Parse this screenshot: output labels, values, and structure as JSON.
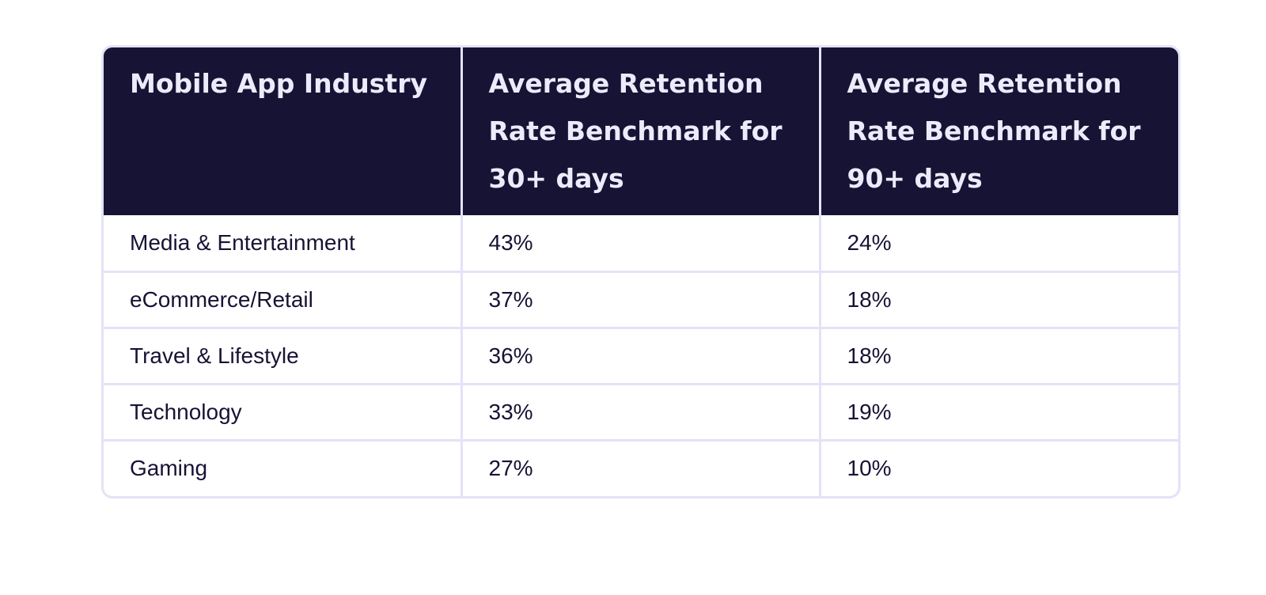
{
  "table": {
    "headers": [
      "Mobile App Industry",
      "Average Retention Rate Benchmark for 30+ days",
      "Average Retention Rate Benchmark for 90+ days"
    ],
    "rows": [
      [
        "Media & Entertainment",
        "43%",
        "24%"
      ],
      [
        "eCommerce/Retail",
        "37%",
        "18%"
      ],
      [
        "Travel & Lifestyle",
        "36%",
        "18%"
      ],
      [
        "Technology",
        "33%",
        "19%"
      ],
      [
        "Gaming",
        "27%",
        "10%"
      ]
    ]
  },
  "colors": {
    "header_background": "#161334",
    "header_text": "#ecebfb",
    "border": "#e4e2f7",
    "body_text": "#161334"
  }
}
